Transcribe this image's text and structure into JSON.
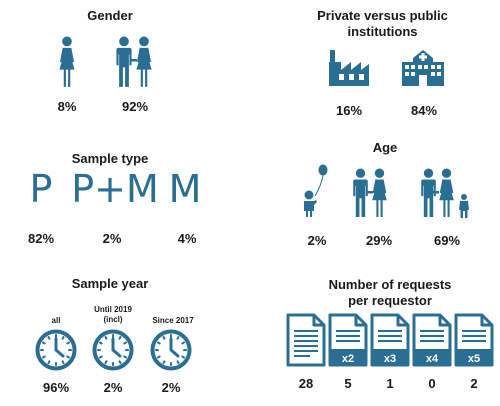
{
  "colors": {
    "icon": "#2a6f93",
    "text": "#1a1a1a"
  },
  "gender": {
    "title": "Gender",
    "items": [
      {
        "icon": "female-icon",
        "value": "8%"
      },
      {
        "icon": "couple-icon",
        "value": "92%"
      }
    ]
  },
  "institutions": {
    "title_line1": "Private versus public",
    "title_line2": "institutions",
    "items": [
      {
        "icon": "factory-icon",
        "value": "16%"
      },
      {
        "icon": "hospital-icon",
        "value": "84%"
      }
    ]
  },
  "sample_type": {
    "title": "Sample type",
    "items": [
      {
        "label": "P",
        "value": "82%"
      },
      {
        "label": "P+M",
        "value": "2%"
      },
      {
        "label": "M",
        "value": "4%"
      }
    ]
  },
  "age": {
    "title": "Age",
    "items": [
      {
        "icon": "child-balloon-icon",
        "value": "2%"
      },
      {
        "icon": "adult-couple-icon",
        "value": "29%"
      },
      {
        "icon": "family-icon",
        "value": "69%"
      }
    ]
  },
  "sample_year": {
    "title": "Sample year",
    "items": [
      {
        "label": "all",
        "icon": "clock-icon",
        "value": "96%"
      },
      {
        "label_line1": "Until 2019",
        "label_line2": "(incl)",
        "icon": "clock-icon",
        "value": "2%"
      },
      {
        "label": "Since 2017",
        "icon": "clock-icon",
        "value": "2%"
      }
    ]
  },
  "requests": {
    "title_line1": "Number of requests",
    "title_line2": "per requestor",
    "items": [
      {
        "multiplier": "",
        "value": "28"
      },
      {
        "multiplier": "x2",
        "value": "5"
      },
      {
        "multiplier": "x3",
        "value": "1"
      },
      {
        "multiplier": "x4",
        "value": "0"
      },
      {
        "multiplier": "x5",
        "value": "2"
      }
    ]
  }
}
